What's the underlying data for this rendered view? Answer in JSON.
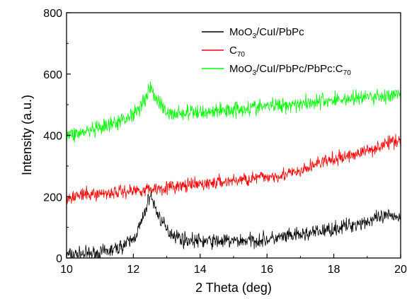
{
  "chart_data": {
    "type": "line",
    "title": "",
    "xlabel": "2 Theta (deg)",
    "ylabel": "Intensity (a.u.)",
    "xlim": [
      10,
      20
    ],
    "ylim": [
      0,
      800
    ],
    "x_ticks": [
      10,
      12,
      14,
      16,
      18,
      20
    ],
    "y_ticks": [
      0,
      200,
      400,
      600,
      800
    ],
    "grid": false,
    "legend_position": "top-right",
    "series": [
      {
        "name": "MoO3/CuI/PbPc",
        "legend_parts": [
          [
            "MoO",
            ""
          ],
          [
            "3",
            "sub"
          ],
          [
            "/CuI/PbPc",
            ""
          ]
        ],
        "color": "#000000",
        "noise": 24,
        "x": [
          10,
          11,
          11.5,
          12,
          12.3,
          12.5,
          12.7,
          13,
          13.5,
          14,
          15,
          16,
          17,
          18,
          19,
          19.8,
          20
        ],
        "values": [
          10,
          15,
          30,
          60,
          130,
          210,
          150,
          90,
          60,
          55,
          55,
          60,
          75,
          95,
          120,
          140,
          130
        ]
      },
      {
        "name": "C70",
        "legend_parts": [
          [
            "C",
            ""
          ],
          [
            "70",
            "sub"
          ]
        ],
        "color": "#ff0000",
        "noise": 22,
        "x": [
          10,
          12,
          14,
          16,
          17,
          17.5,
          18,
          19,
          20
        ],
        "values": [
          200,
          220,
          240,
          265,
          280,
          310,
          320,
          350,
          390
        ]
      },
      {
        "name": "MoO3/CuI/PbPc/PbPc:C70",
        "legend_parts": [
          [
            "MoO",
            ""
          ],
          [
            "3",
            "sub"
          ],
          [
            "/CuI/PbPc/PbPc:C",
            ""
          ],
          [
            "70",
            "sub"
          ]
        ],
        "color": "#00ff00",
        "noise": 26,
        "x": [
          10,
          11,
          11.5,
          12,
          12.3,
          12.5,
          12.7,
          13,
          14,
          15,
          16,
          17,
          18,
          19,
          20
        ],
        "values": [
          400,
          420,
          440,
          470,
          510,
          555,
          520,
          470,
          475,
          485,
          495,
          505,
          515,
          525,
          530
        ]
      }
    ]
  }
}
